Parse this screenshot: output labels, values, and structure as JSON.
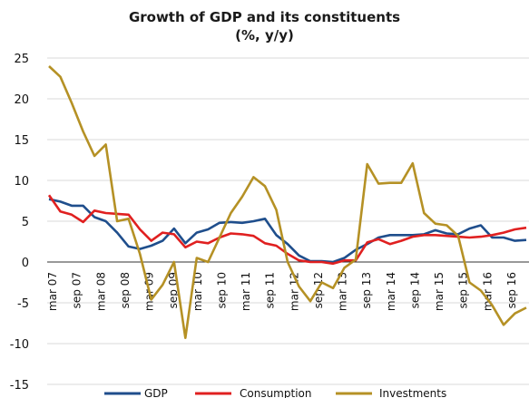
{
  "chart_data": {
    "type": "line",
    "title": "Growth of GDP and its constituents",
    "subtitle": "(%, y/y)",
    "xlabel": "",
    "ylabel": "",
    "ylim": [
      -15,
      25
    ],
    "yticks": [
      25,
      20,
      15,
      10,
      5,
      0,
      -5,
      -10,
      -15
    ],
    "grid": "horizontal",
    "legend_position": "bottom",
    "x_tick_labels": [
      "mar 07",
      "sep 07",
      "mar 08",
      "sep 08",
      "mar 09",
      "sep 09",
      "mar 10",
      "sep 10",
      "mar 11",
      "sep 11",
      "mar 12",
      "sep 12",
      "mar 13",
      "sep 13",
      "mar 14",
      "sep 14",
      "mar 15",
      "sep 15",
      "mar 16",
      "sep 16"
    ],
    "series": [
      {
        "name": "GDP",
        "color": "#1f4e8c",
        "values": [
          7.7,
          7.4,
          6.9,
          6.9,
          5.5,
          5.0,
          3.6,
          1.9,
          1.6,
          2.0,
          2.6,
          4.1,
          2.3,
          3.6,
          4.0,
          4.8,
          4.9,
          4.8,
          5.0,
          5.3,
          3.3,
          2.2,
          0.8,
          0.1,
          0.1,
          0.0,
          0.5,
          1.5,
          2.2,
          3.0,
          3.3,
          3.3,
          3.3,
          3.4,
          3.9,
          3.5,
          3.4,
          4.1,
          4.5,
          3.0,
          3.0,
          2.6,
          2.7
        ]
      },
      {
        "name": "Consumption",
        "color": "#e02020",
        "values": [
          8.2,
          6.2,
          5.8,
          4.9,
          6.3,
          6.0,
          5.9,
          5.8,
          4.0,
          2.6,
          3.6,
          3.4,
          1.8,
          2.5,
          2.3,
          3.0,
          3.5,
          3.4,
          3.2,
          2.3,
          2.0,
          1.0,
          0.2,
          0.0,
          0.0,
          -0.2,
          0.2,
          0.2,
          2.4,
          2.8,
          2.2,
          2.6,
          3.1,
          3.3,
          3.3,
          3.2,
          3.1,
          3.0,
          3.1,
          3.3,
          3.6,
          4.0,
          4.2
        ]
      },
      {
        "name": "Investments",
        "color": "#b59125",
        "values": [
          24.0,
          22.7,
          19.5,
          16.0,
          13.0,
          14.4,
          5.0,
          5.3,
          1.0,
          -4.6,
          -2.8,
          0.0,
          -9.3,
          0.5,
          0.0,
          3.0,
          6.0,
          8.0,
          10.4,
          9.3,
          6.4,
          0.0,
          -3.0,
          -4.8,
          -2.5,
          -3.2,
          -0.7,
          0.3,
          12.0,
          9.6,
          9.7,
          9.7,
          12.1,
          6.0,
          4.7,
          4.5,
          3.2,
          -2.5,
          -3.5,
          -5.3,
          -7.7,
          -6.3,
          -5.6
        ]
      }
    ]
  }
}
